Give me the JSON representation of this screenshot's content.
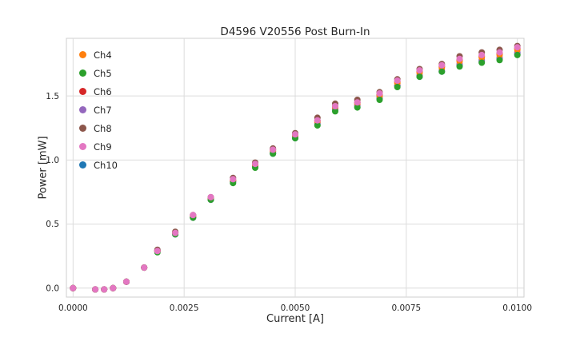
{
  "chart_data": {
    "type": "scatter",
    "title": "D4596 V20556 Post Burn-In",
    "xlabel": "Current [A]",
    "ylabel": "Power [mW]",
    "xlim": [
      -0.00015,
      0.01015
    ],
    "ylim": [
      -0.07,
      1.95
    ],
    "xticks": [
      0.0,
      0.0025,
      0.005,
      0.0075,
      0.01
    ],
    "xtick_labels": [
      "0.0000",
      "0.0025",
      "0.0050",
      "0.0075",
      "0.0100"
    ],
    "yticks": [
      0.0,
      0.5,
      1.0,
      1.5
    ],
    "ytick_labels": [
      "0.0",
      "0.5",
      "1.0",
      "1.5"
    ],
    "grid": true,
    "legend_position": "upper-left",
    "marker": "circle",
    "x": [
      0.0,
      0.0005,
      0.0007,
      0.0009,
      0.0012,
      0.0016,
      0.0019,
      0.0023,
      0.0027,
      0.0031,
      0.0036,
      0.0041,
      0.0045,
      0.005,
      0.0055,
      0.0059,
      0.0064,
      0.0069,
      0.0073,
      0.0078,
      0.0083,
      0.0087,
      0.0092,
      0.0096,
      0.01
    ],
    "series": [
      {
        "name": "Ch4",
        "color": "#ff7f0e",
        "values": [
          0.0,
          -0.01,
          -0.01,
          0.0,
          0.05,
          0.16,
          0.29,
          0.43,
          0.56,
          0.7,
          0.84,
          0.96,
          1.07,
          1.19,
          1.3,
          1.41,
          1.44,
          1.5,
          1.6,
          1.68,
          1.72,
          1.77,
          1.8,
          1.82,
          1.86
        ]
      },
      {
        "name": "Ch5",
        "color": "#2ca02c",
        "values": [
          0.0,
          -0.01,
          -0.01,
          0.0,
          0.05,
          0.16,
          0.28,
          0.42,
          0.55,
          0.69,
          0.82,
          0.94,
          1.05,
          1.17,
          1.27,
          1.38,
          1.41,
          1.47,
          1.57,
          1.65,
          1.69,
          1.73,
          1.76,
          1.78,
          1.82
        ]
      },
      {
        "name": "Ch6",
        "color": "#d62728",
        "values": [
          0.0,
          -0.01,
          -0.01,
          0.0,
          0.05,
          0.16,
          0.29,
          0.43,
          0.56,
          0.7,
          0.84,
          0.96,
          1.08,
          1.2,
          1.31,
          1.42,
          1.45,
          1.51,
          1.61,
          1.69,
          1.73,
          1.78,
          1.81,
          1.83,
          1.87
        ]
      },
      {
        "name": "Ch7",
        "color": "#9467bd",
        "values": [
          0.0,
          -0.01,
          -0.01,
          0.0,
          0.05,
          0.16,
          0.29,
          0.43,
          0.55,
          0.69,
          0.83,
          0.95,
          1.06,
          1.18,
          1.29,
          1.4,
          1.43,
          1.49,
          1.58,
          1.66,
          1.7,
          1.75,
          1.78,
          1.8,
          1.84
        ]
      },
      {
        "name": "Ch8",
        "color": "#8c564b",
        "values": [
          0.0,
          -0.01,
          -0.01,
          0.0,
          0.05,
          0.16,
          0.3,
          0.44,
          0.57,
          0.71,
          0.86,
          0.98,
          1.09,
          1.21,
          1.33,
          1.44,
          1.47,
          1.53,
          1.63,
          1.71,
          1.75,
          1.81,
          1.84,
          1.86,
          1.89
        ]
      },
      {
        "name": "Ch9",
        "color": "#e377c2",
        "values": [
          0.0,
          -0.01,
          -0.01,
          0.0,
          0.05,
          0.16,
          0.29,
          0.43,
          0.57,
          0.71,
          0.85,
          0.97,
          1.08,
          1.2,
          1.31,
          1.42,
          1.45,
          1.52,
          1.62,
          1.7,
          1.74,
          1.79,
          1.82,
          1.84,
          1.88
        ]
      },
      {
        "name": "Ch10",
        "color": "#1f77b4",
        "values": [
          0.0,
          -0.01,
          -0.01,
          0.0,
          0.05,
          0.16,
          0.29,
          0.42,
          0.55,
          0.69,
          0.83,
          0.95,
          1.05,
          1.17,
          1.28,
          1.39,
          1.42,
          1.48,
          1.58,
          1.65,
          1.69,
          1.74,
          1.77,
          1.79,
          1.83
        ]
      }
    ],
    "style": {
      "grid_color": "#dcdcdc",
      "border_color": "#cfcfcf",
      "text_color": "#262626",
      "marker_radius": 4
    }
  }
}
